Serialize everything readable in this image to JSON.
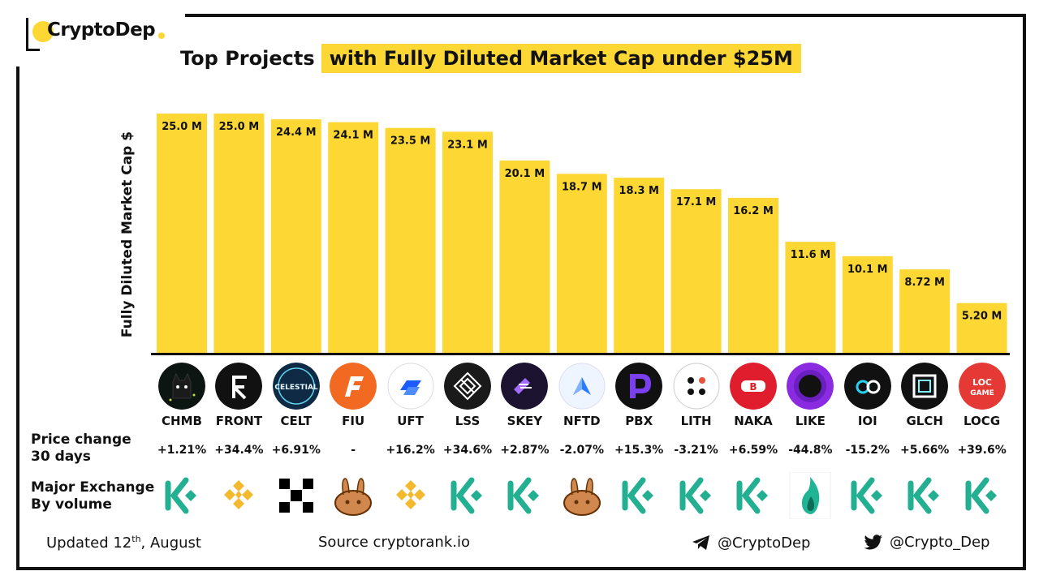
{
  "brand": {
    "name": "CryptoDep"
  },
  "title": {
    "part1": "Top Projects",
    "part2": "with Fully Diluted Market Cap under $25M"
  },
  "chart_data": {
    "type": "bar",
    "title": "Top Projects with Fully Diluted Market Cap under $25M",
    "ylabel": "Fully Diluted Market Cap $",
    "xlabel": "",
    "ylim": [
      0,
      25.0
    ],
    "categories": [
      "CHMB",
      "FRONT",
      "CELT",
      "FIU",
      "UFT",
      "LSS",
      "SKEY",
      "NFTD",
      "PBX",
      "LITH",
      "NAKA",
      "LIKE",
      "IOI",
      "GLCH",
      "LOCG"
    ],
    "values": [
      25.0,
      25.0,
      24.4,
      24.1,
      23.5,
      23.1,
      20.1,
      18.7,
      18.3,
      17.1,
      16.2,
      11.6,
      10.1,
      8.72,
      5.2
    ],
    "value_labels": [
      "25.0 M",
      "25.0 M",
      "24.4 M",
      "24.1 M",
      "23.5 M",
      "23.1 M",
      "20.1 M",
      "18.7 M",
      "18.3 M",
      "17.1 M",
      "16.2 M",
      "11.6 M",
      "10.1 M",
      "8.72 M",
      "5.20 M"
    ],
    "price_change_30d": [
      "+1.21%",
      "+34.4%",
      "+6.91%",
      "-",
      "+16.2%",
      "+34.6%",
      "+2.87%",
      "-2.07%",
      "+15.3%",
      "-3.21%",
      "+6.59%",
      "-44.8%",
      "-15.2%",
      "+5.66%",
      "+39.6%"
    ],
    "major_exchange": [
      "kucoin",
      "binance",
      "okx",
      "pancakeswap",
      "binance",
      "kucoin",
      "kucoin",
      "pancakeswap",
      "kucoin",
      "kucoin",
      "kucoin",
      "huobi",
      "kucoin",
      "kucoin",
      "kucoin"
    ],
    "bar_color": "#FDD835"
  },
  "coins": [
    {
      "symbol": "CHMB",
      "icon": "chmb-cat-icon"
    },
    {
      "symbol": "FRONT",
      "icon": "front-f-icon"
    },
    {
      "symbol": "CELT",
      "icon": "celestial-icon",
      "icon_text": "CELESTIAL"
    },
    {
      "symbol": "FIU",
      "icon": "fiu-f-icon"
    },
    {
      "symbol": "UFT",
      "icon": "unilend-icon"
    },
    {
      "symbol": "LSS",
      "icon": "lossless-icon"
    },
    {
      "symbol": "SKEY",
      "icon": "skey-icon"
    },
    {
      "symbol": "NFTD",
      "icon": "nftrade-arrow-icon"
    },
    {
      "symbol": "PBX",
      "icon": "paribus-p-icon"
    },
    {
      "symbol": "LITH",
      "icon": "lithium-dots-icon"
    },
    {
      "symbol": "NAKA",
      "icon": "nakamoto-icon"
    },
    {
      "symbol": "LIKE",
      "icon": "only1-like-icon"
    },
    {
      "symbol": "IOI",
      "icon": "ioi-icon"
    },
    {
      "symbol": "GLCH",
      "icon": "glitch-icon"
    },
    {
      "symbol": "LOCG",
      "icon": "locgame-icon",
      "icon_text": [
        "LOC",
        "GAME"
      ]
    }
  ],
  "rows": {
    "price_change": [
      "Price change",
      "30 days"
    ],
    "exchange": [
      "Major Exchange",
      "By volume"
    ]
  },
  "footer": {
    "updated_prefix": "Updated 12",
    "updated_sup": "th",
    "updated_suffix": ", August",
    "source": "Source  cryptorank.io",
    "telegram": "@CryptoDep",
    "twitter": "@Crypto_Dep"
  },
  "colors": {
    "accent": "#FDD835",
    "kucoin": "#23AF91",
    "binance": "#F3BA2F",
    "huobi": "#1FB594"
  }
}
